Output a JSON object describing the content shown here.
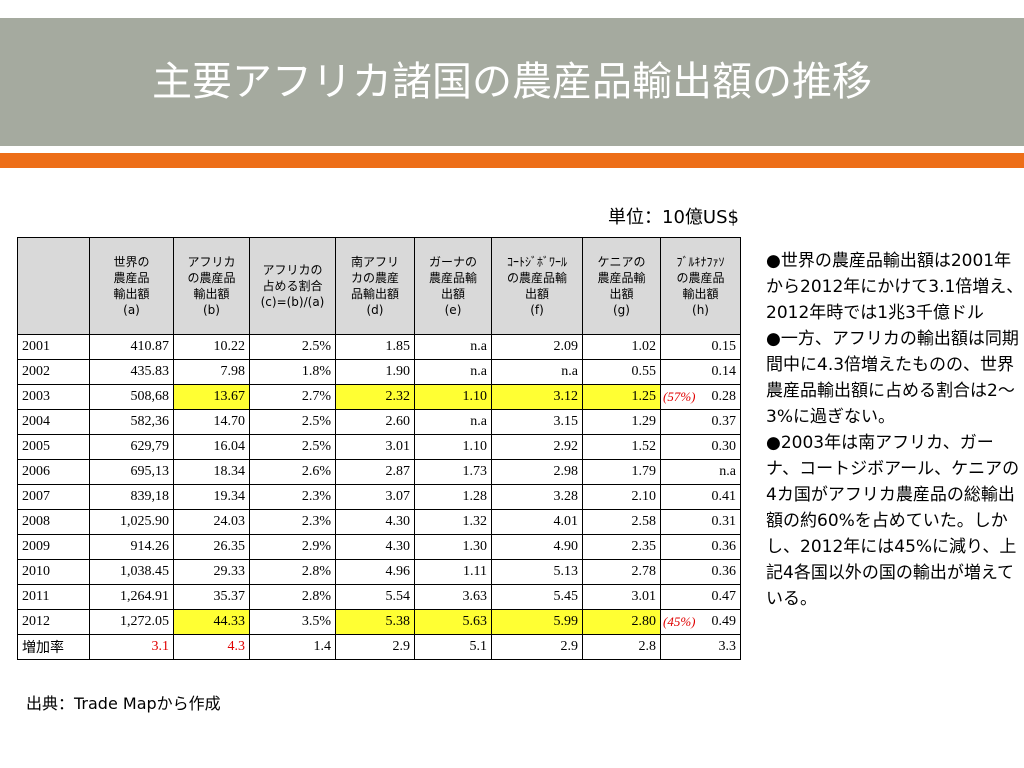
{
  "title": "主要アフリカ諸国の農産品輸出額の推移",
  "unit": "単位：10億US$",
  "table": {
    "headers": [
      "",
      "世界の\n農産品\n輸出額\n(a)",
      "アフリカ\nの農産品\n輸出額\n(b)",
      "アフリカの\n占める割合\n(c)=(b)/(a)",
      "南アフリ\nカの農産\n品輸出額\n(d)",
      "ガーナの\n農産品輸\n出額\n(e)",
      "ｺｰﾄｼﾞﾎﾞﾜｰﾙ\nの農産品輸\n出額\n(f)",
      "ケニアの\n農産品輸\n出額\n(g)",
      "ﾌﾞﾙｷﾅﾌｧｿ\nの農産品\n輸出額\n(h)"
    ],
    "rows": [
      [
        "2001",
        "410.87",
        "10.22",
        "2.5%",
        "1.85",
        "n.a",
        "2.09",
        "1.02",
        "0.15"
      ],
      [
        "2002",
        "435.83",
        "7.98",
        "1.8%",
        "1.90",
        "n.a",
        "n.a",
        "0.55",
        "0.14"
      ],
      [
        "2003",
        "508,68",
        "13.67",
        "2.7%",
        "2.32",
        "1.10",
        "3.12",
        "1.25",
        "0.28"
      ],
      [
        "2004",
        "582,36",
        "14.70",
        "2.5%",
        "2.60",
        "n.a",
        "3.15",
        "1.29",
        "0.37"
      ],
      [
        "2005",
        "629,79",
        "16.04",
        "2.5%",
        "3.01",
        "1.10",
        "2.92",
        "1.52",
        "0.30"
      ],
      [
        "2006",
        "695,13",
        "18.34",
        "2.6%",
        "2.87",
        "1.73",
        "2.98",
        "1.79",
        "n.a"
      ],
      [
        "2007",
        "839,18",
        "19.34",
        "2.3%",
        "3.07",
        "1.28",
        "3.28",
        "2.10",
        "0.41"
      ],
      [
        "2008",
        "1,025.90",
        "24.03",
        "2.3%",
        "4.30",
        "1.32",
        "4.01",
        "2.58",
        "0.31"
      ],
      [
        "2009",
        "914.26",
        "26.35",
        "2.9%",
        "4.30",
        "1.30",
        "4.90",
        "2.35",
        "0.36"
      ],
      [
        "2010",
        "1,038.45",
        "29.33",
        "2.8%",
        "4.96",
        "1.11",
        "5.13",
        "2.78",
        "0.36"
      ],
      [
        "2011",
        "1,264.91",
        "35.37",
        "2.8%",
        "5.54",
        "3.63",
        "5.45",
        "3.01",
        "0.47"
      ],
      [
        "2012",
        "1,272.05",
        "44.33",
        "3.5%",
        "5.38",
        "5.63",
        "5.99",
        "2.80",
        "0.49"
      ],
      [
        "増加率",
        "3.1",
        "4.3",
        "1.4",
        "2.9",
        "5.1",
        "2.9",
        "2.8",
        "3.3"
      ]
    ],
    "notes": {
      "row2003": "(57%)",
      "row2012": "(45%)"
    },
    "highlight_color": "#ffff33",
    "emphasis_color": "#e00000"
  },
  "bullets": [
    "●世界の農産品輸出額は2001年から2012年にかけて3.1倍増え、2012年時では1兆3千億ドル",
    "●一方、アフリカの輸出額は同期間中に4.3倍増えたものの、世界農産品輸出額に占める割合は2～3%に過ぎない。",
    "●2003年は南アフリカ、ガーナ、コートジボアール、ケニアの4カ国がアフリカ農産品の総輸出額の約60%を占めていた。しかし、2012年には45%に減り、上記4各国以外の国の輸出が増えている。"
  ],
  "source": "出典：Trade Mapから作成",
  "colors": {
    "title_bar": "#a5aa9f",
    "accent_bar": "#ed6e18"
  }
}
